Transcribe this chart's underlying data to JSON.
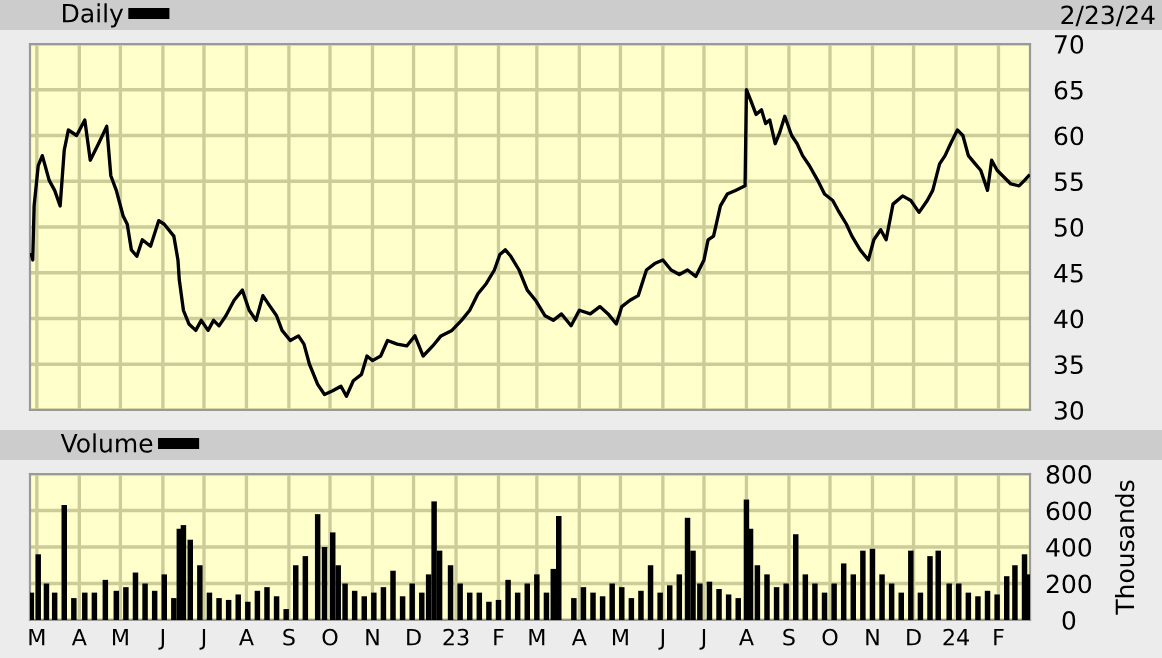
{
  "chart_data": [
    {
      "type": "line",
      "legend": "top left",
      "annotations": [
        "2/23/24"
      ],
      "grid": true,
      "tick_labels": "y",
      "xlim": [
        "2022-02-24",
        "2024-02-24"
      ],
      "ylim": [
        30,
        70
      ],
      "yticks": [
        30,
        35,
        40,
        45,
        50,
        55,
        60,
        65,
        70
      ],
      "xticks": [
        {
          "value": "2022-03-01",
          "label": null
        },
        {
          "value": "2022-04-01",
          "label": null
        },
        {
          "value": "2022-05-01",
          "label": null
        },
        {
          "value": "2022-06-01",
          "label": null
        },
        {
          "value": "2022-07-01",
          "label": null
        },
        {
          "value": "2022-08-01",
          "label": null
        },
        {
          "value": "2022-09-01",
          "label": null
        },
        {
          "value": "2022-10-01",
          "label": null
        },
        {
          "value": "2022-11-01",
          "label": null
        },
        {
          "value": "2022-12-01",
          "label": null
        },
        {
          "value": "2023-01-01",
          "label": null
        },
        {
          "value": "2023-02-01",
          "label": null
        },
        {
          "value": "2023-03-01",
          "label": null
        },
        {
          "value": "2023-04-01",
          "label": null
        },
        {
          "value": "2023-05-01",
          "label": null
        },
        {
          "value": "2023-06-01",
          "label": null
        },
        {
          "value": "2023-07-01",
          "label": null
        },
        {
          "value": "2023-08-01",
          "label": null
        },
        {
          "value": "2023-09-01",
          "label": null
        },
        {
          "value": "2023-10-01",
          "label": null
        },
        {
          "value": "2023-11-01",
          "label": null
        },
        {
          "value": "2023-12-01",
          "label": null
        },
        {
          "value": "2024-01-01",
          "label": null
        },
        {
          "value": "2024-02-01",
          "label": null
        }
      ],
      "x": [
        "2022-02-25",
        "2022-02-26",
        "2022-02-27",
        "2022-03-02",
        "2022-03-05",
        "2022-03-10",
        "2022-03-14",
        "2022-03-18",
        "2022-03-21",
        "2022-03-24",
        "2022-03-30",
        "2022-04-05",
        "2022-04-09",
        "2022-04-15",
        "2022-04-21",
        "2022-04-24",
        "2022-04-28",
        "2022-05-03",
        "2022-05-06",
        "2022-05-09",
        "2022-05-13",
        "2022-05-17",
        "2022-05-23",
        "2022-05-29",
        "2022-06-02",
        "2022-06-09",
        "2022-06-12",
        "2022-06-13",
        "2022-06-16",
        "2022-06-20",
        "2022-06-25",
        "2022-06-29",
        "2022-07-04",
        "2022-07-08",
        "2022-07-12",
        "2022-07-17",
        "2022-07-23",
        "2022-07-29",
        "2022-08-03",
        "2022-08-08",
        "2022-08-13",
        "2022-08-17",
        "2022-08-23",
        "2022-08-27",
        "2022-09-02",
        "2022-09-08",
        "2022-09-12",
        "2022-09-16",
        "2022-09-22",
        "2022-09-27",
        "2022-10-03",
        "2022-10-09",
        "2022-10-13",
        "2022-10-18",
        "2022-10-24",
        "2022-10-28",
        "2022-11-01",
        "2022-11-07",
        "2022-11-12",
        "2022-11-19",
        "2022-11-26",
        "2022-12-02",
        "2022-12-08",
        "2022-12-15",
        "2022-12-21",
        "2022-12-29",
        "2023-01-05",
        "2023-01-11",
        "2023-01-17",
        "2023-01-23",
        "2023-01-29",
        "2023-02-02",
        "2023-02-06",
        "2023-02-10",
        "2023-02-16",
        "2023-02-22",
        "2023-02-28",
        "2023-03-07",
        "2023-03-13",
        "2023-03-19",
        "2023-03-26",
        "2023-04-01",
        "2023-04-09",
        "2023-04-16",
        "2023-04-22",
        "2023-04-28",
        "2023-05-02",
        "2023-05-08",
        "2023-05-14",
        "2023-05-20",
        "2023-05-26",
        "2023-06-01",
        "2023-06-07",
        "2023-06-13",
        "2023-06-19",
        "2023-06-25",
        "2023-07-01",
        "2023-07-04",
        "2023-07-08",
        "2023-07-13",
        "2023-07-18",
        "2023-07-24",
        "2023-07-31",
        "2023-08-01",
        "2023-08-04",
        "2023-08-08",
        "2023-08-12",
        "2023-08-15",
        "2023-08-18",
        "2023-08-22",
        "2023-08-25",
        "2023-08-29",
        "2023-09-03",
        "2023-09-07",
        "2023-09-11",
        "2023-09-16",
        "2023-09-22",
        "2023-09-27",
        "2023-10-03",
        "2023-10-07",
        "2023-10-13",
        "2023-10-17",
        "2023-10-23",
        "2023-10-29",
        "2023-11-02",
        "2023-11-07",
        "2023-11-11",
        "2023-11-16",
        "2023-11-23",
        "2023-11-29",
        "2023-12-05",
        "2023-12-11",
        "2023-12-15",
        "2023-12-20",
        "2023-12-24",
        "2023-12-28",
        "2024-01-02",
        "2024-01-06",
        "2024-01-10",
        "2024-01-15",
        "2024-01-19",
        "2024-01-24",
        "2024-01-27",
        "2024-01-31",
        "2024-02-04",
        "2024-02-10",
        "2024-02-16",
        "2024-02-20",
        "2024-02-23"
      ],
      "series": [
        {
          "name": "Daily",
          "color": "#000000",
          "values": [
            47.0,
            46.4,
            52.3,
            56.7,
            57.8,
            55.1,
            54.0,
            52.3,
            58.4,
            60.6,
            60.0,
            61.7,
            57.3,
            59.1,
            61.0,
            55.6,
            54.0,
            51.2,
            50.3,
            47.5,
            46.8,
            48.6,
            47.9,
            50.7,
            50.3,
            49.0,
            46.4,
            44.2,
            40.9,
            39.4,
            38.7,
            39.8,
            38.7,
            39.8,
            39.2,
            40.3,
            42.0,
            43.1,
            40.9,
            39.8,
            42.5,
            41.6,
            40.3,
            38.7,
            37.6,
            38.1,
            37.2,
            35.0,
            32.8,
            31.7,
            32.1,
            32.6,
            31.5,
            33.2,
            33.9,
            35.9,
            35.4,
            35.9,
            37.6,
            37.2,
            37.0,
            38.1,
            35.9,
            37.0,
            38.1,
            38.7,
            39.8,
            40.9,
            42.7,
            43.8,
            45.3,
            47.0,
            47.5,
            46.8,
            45.3,
            43.1,
            42.0,
            40.3,
            39.8,
            40.5,
            39.2,
            40.9,
            40.5,
            41.3,
            40.5,
            39.4,
            41.3,
            42.0,
            42.5,
            45.3,
            46.0,
            46.4,
            45.3,
            44.8,
            45.3,
            44.6,
            46.4,
            48.6,
            49.0,
            52.3,
            53.6,
            54.0,
            54.5,
            65.0,
            63.9,
            62.3,
            62.8,
            61.3,
            61.7,
            59.1,
            60.2,
            62.1,
            60.0,
            59.1,
            57.8,
            56.7,
            55.1,
            53.6,
            52.9,
            51.8,
            50.3,
            49.0,
            47.5,
            46.4,
            48.6,
            49.7,
            48.6,
            52.5,
            53.4,
            52.9,
            51.6,
            52.9,
            54.0,
            56.9,
            57.8,
            59.1,
            60.6,
            60.0,
            57.8,
            56.9,
            56.2,
            54.0,
            57.3,
            56.2,
            55.6,
            54.7,
            54.5,
            55.1,
            55.6
          ]
        }
      ]
    },
    {
      "type": "bar",
      "legend": "top left",
      "grid": true,
      "ylabel": "Thousands",
      "xlim": [
        "2022-02-24",
        "2024-02-24"
      ],
      "ylim": [
        0,
        800
      ],
      "yticks": [
        0,
        200,
        400,
        600,
        800
      ],
      "xticks": [
        {
          "value": "2022-03-01",
          "label": "M"
        },
        {
          "value": "2022-04-01",
          "label": "A"
        },
        {
          "value": "2022-05-01",
          "label": "M"
        },
        {
          "value": "2022-06-01",
          "label": "J"
        },
        {
          "value": "2022-07-01",
          "label": "J"
        },
        {
          "value": "2022-08-01",
          "label": "A"
        },
        {
          "value": "2022-09-01",
          "label": "S"
        },
        {
          "value": "2022-10-01",
          "label": "O"
        },
        {
          "value": "2022-11-01",
          "label": "N"
        },
        {
          "value": "2022-12-01",
          "label": "D"
        },
        {
          "value": "2023-01-01",
          "label": "23"
        },
        {
          "value": "2023-02-01",
          "label": "F"
        },
        {
          "value": "2023-03-01",
          "label": "M"
        },
        {
          "value": "2023-04-01",
          "label": "A"
        },
        {
          "value": "2023-05-01",
          "label": "M"
        },
        {
          "value": "2023-06-01",
          "label": "J"
        },
        {
          "value": "2023-07-01",
          "label": "J"
        },
        {
          "value": "2023-08-01",
          "label": "A"
        },
        {
          "value": "2023-09-01",
          "label": "S"
        },
        {
          "value": "2023-10-01",
          "label": "O"
        },
        {
          "value": "2023-11-01",
          "label": "N"
        },
        {
          "value": "2023-12-01",
          "label": "D"
        },
        {
          "value": "2024-01-01",
          "label": "24"
        },
        {
          "value": "2024-02-01",
          "label": "F"
        }
      ],
      "x": [
        "2022-02-25",
        "2022-03-02",
        "2022-03-08",
        "2022-03-14",
        "2022-03-21",
        "2022-03-28",
        "2022-04-05",
        "2022-04-12",
        "2022-04-20",
        "2022-04-28",
        "2022-05-05",
        "2022-05-12",
        "2022-05-19",
        "2022-05-26",
        "2022-06-02",
        "2022-06-09",
        "2022-06-13",
        "2022-06-16",
        "2022-06-21",
        "2022-06-28",
        "2022-07-05",
        "2022-07-12",
        "2022-07-19",
        "2022-07-26",
        "2022-08-02",
        "2022-08-09",
        "2022-08-16",
        "2022-08-23",
        "2022-08-30",
        "2022-09-06",
        "2022-09-13",
        "2022-09-22",
        "2022-09-27",
        "2022-10-03",
        "2022-10-07",
        "2022-10-12",
        "2022-10-19",
        "2022-10-26",
        "2022-11-02",
        "2022-11-09",
        "2022-11-16",
        "2022-11-23",
        "2022-11-30",
        "2022-12-07",
        "2022-12-12",
        "2022-12-16",
        "2022-12-20",
        "2022-12-28",
        "2023-01-04",
        "2023-01-11",
        "2023-01-18",
        "2023-01-25",
        "2023-02-01",
        "2023-02-08",
        "2023-02-15",
        "2023-02-22",
        "2023-03-01",
        "2023-03-08",
        "2023-03-13",
        "2023-03-17",
        "2023-03-28",
        "2023-04-04",
        "2023-04-11",
        "2023-04-18",
        "2023-04-25",
        "2023-05-02",
        "2023-05-09",
        "2023-05-16",
        "2023-05-23",
        "2023-05-30",
        "2023-06-06",
        "2023-06-13",
        "2023-06-19",
        "2023-06-23",
        "2023-06-28",
        "2023-07-05",
        "2023-07-12",
        "2023-07-19",
        "2023-07-26",
        "2023-08-01",
        "2023-08-04",
        "2023-08-09",
        "2023-08-16",
        "2023-08-23",
        "2023-08-30",
        "2023-09-06",
        "2023-09-13",
        "2023-09-20",
        "2023-09-27",
        "2023-10-04",
        "2023-10-11",
        "2023-10-18",
        "2023-10-25",
        "2023-11-01",
        "2023-11-08",
        "2023-11-15",
        "2023-11-22",
        "2023-11-29",
        "2023-12-06",
        "2023-12-13",
        "2023-12-19",
        "2023-12-27",
        "2024-01-03",
        "2024-01-10",
        "2024-01-17",
        "2024-01-24",
        "2024-01-31",
        "2024-02-07",
        "2024-02-13",
        "2024-02-20",
        "2024-02-23"
      ],
      "series": [
        {
          "name": "Volume",
          "color": "#000000",
          "values": [
            150,
            360,
            200,
            150,
            630,
            120,
            150,
            150,
            220,
            160,
            180,
            260,
            200,
            160,
            250,
            120,
            500,
            520,
            440,
            300,
            150,
            120,
            110,
            140,
            100,
            160,
            180,
            130,
            60,
            300,
            350,
            580,
            400,
            480,
            300,
            200,
            160,
            130,
            150,
            180,
            270,
            130,
            200,
            150,
            250,
            650,
            380,
            300,
            200,
            150,
            150,
            100,
            110,
            220,
            150,
            200,
            250,
            150,
            280,
            570,
            120,
            180,
            150,
            130,
            200,
            180,
            120,
            160,
            300,
            150,
            190,
            250,
            560,
            380,
            200,
            210,
            170,
            140,
            120,
            660,
            500,
            300,
            250,
            180,
            200,
            470,
            250,
            200,
            150,
            200,
            310,
            250,
            380,
            390,
            250,
            200,
            150,
            380,
            150,
            350,
            380,
            200,
            200,
            150,
            130,
            160,
            140,
            240,
            300,
            360,
            250
          ]
        }
      ]
    }
  ]
}
